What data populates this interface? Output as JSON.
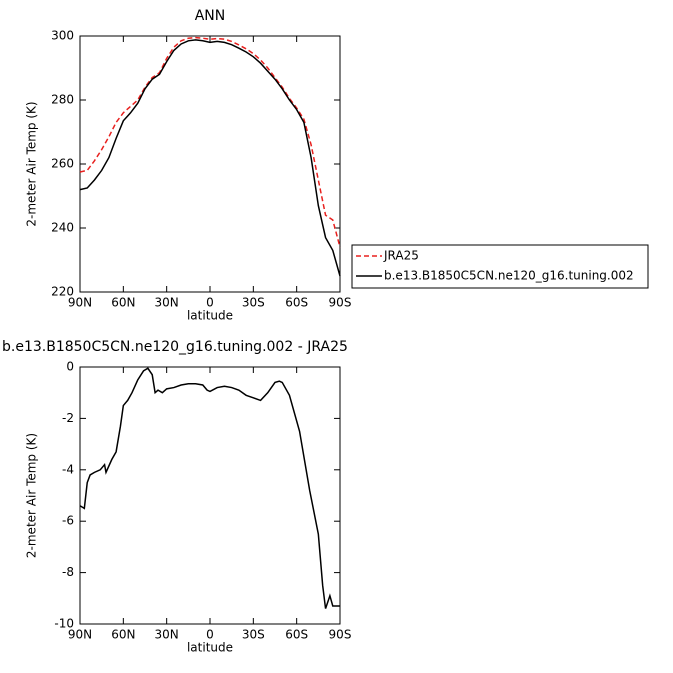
{
  "chart_data": [
    {
      "type": "line",
      "title": "ANN",
      "x_label": "latitude",
      "y_label": "2-meter Air Temp (K)",
      "x": [
        90,
        85,
        80,
        75,
        70,
        65,
        60,
        55,
        50,
        45,
        40,
        35,
        30,
        25,
        20,
        15,
        10,
        5,
        0,
        -5,
        -10,
        -15,
        -20,
        -25,
        -30,
        -35,
        -40,
        -45,
        -50,
        -55,
        -60,
        -65,
        -70,
        -75,
        -80,
        -85,
        -90
      ],
      "series": [
        {
          "name": "JRA25",
          "color": "#e8201e",
          "style": "dashed",
          "values": [
            257.5,
            258,
            261,
            264.5,
            268.5,
            273,
            276,
            278,
            280,
            284,
            287,
            288.5,
            293,
            296.5,
            298.5,
            299.3,
            299.5,
            299.3,
            299,
            299.2,
            299,
            298.3,
            297.2,
            296,
            294.5,
            292.5,
            290,
            287,
            284,
            280.5,
            277.5,
            274,
            266,
            255,
            244,
            242.5,
            234
          ]
        },
        {
          "name": "b.e13.B1850C5CN.ne120_g16.tuning.002",
          "color": "#000000",
          "style": "solid",
          "values": [
            252,
            252.5,
            255,
            258,
            262,
            268,
            273.5,
            276,
            279,
            283.5,
            286.5,
            288,
            292,
            295.5,
            297.5,
            298.5,
            298.8,
            298.5,
            298,
            298.3,
            298,
            297.3,
            296.2,
            295,
            293.5,
            291.5,
            289,
            286.5,
            283.5,
            280,
            277,
            273,
            262,
            247,
            237,
            233,
            225
          ]
        }
      ],
      "xlim": [
        90,
        -90
      ],
      "xticks": [
        {
          "value": 90,
          "label": "90N"
        },
        {
          "value": 60,
          "label": "60N"
        },
        {
          "value": 30,
          "label": "30N"
        },
        0,
        {
          "value": -30,
          "label": "30S"
        },
        {
          "value": -60,
          "label": "60S"
        },
        {
          "value": -90,
          "label": "90S"
        }
      ],
      "ylim": [
        220,
        300
      ],
      "yticks": [
        220,
        240,
        260,
        280,
        300
      ],
      "legend": "right"
    },
    {
      "type": "line",
      "title": "b.e13.B1850C5CN.ne120_g16.tuning.002 - JRA25",
      "x_label": "latitude",
      "y_label": "2-meter Air Temp (K)",
      "x": [
        90,
        87,
        85,
        83,
        80,
        76,
        73,
        72,
        68,
        65,
        62,
        60,
        57,
        54,
        50,
        46,
        43,
        40,
        38,
        36,
        33,
        30,
        25,
        20,
        15,
        10,
        5,
        2,
        0,
        -5,
        -10,
        -15,
        -20,
        -25,
        -30,
        -35,
        -40,
        -45,
        -48,
        -50,
        -55,
        -62,
        -69,
        -75,
        -78,
        -80,
        -83,
        -85,
        -90
      ],
      "series": [
        {
          "color": "#000000",
          "style": "solid",
          "values": [
            -5.4,
            -5.5,
            -4.5,
            -4.2,
            -4.1,
            -4.0,
            -3.8,
            -4.1,
            -3.6,
            -3.3,
            -2.3,
            -1.5,
            -1.3,
            -1.0,
            -0.5,
            -0.15,
            -0.05,
            -0.3,
            -1.0,
            -0.9,
            -1.0,
            -0.85,
            -0.8,
            -0.7,
            -0.65,
            -0.65,
            -0.7,
            -0.9,
            -0.95,
            -0.8,
            -0.75,
            -0.8,
            -0.9,
            -1.1,
            -1.2,
            -1.3,
            -1.0,
            -0.6,
            -0.55,
            -0.6,
            -1.1,
            -2.5,
            -4.8,
            -6.5,
            -8.5,
            -9.4,
            -8.9,
            -9.3,
            -9.3
          ]
        }
      ],
      "xlim": [
        90,
        -90
      ],
      "xticks": [
        {
          "value": 90,
          "label": "90N"
        },
        {
          "value": 60,
          "label": "60N"
        },
        {
          "value": 30,
          "label": "30N"
        },
        0,
        {
          "value": -30,
          "label": "30S"
        },
        {
          "value": -60,
          "label": "60S"
        },
        {
          "value": -90,
          "label": "90S"
        }
      ],
      "ylim": [
        -10,
        0
      ],
      "yticks": [
        -10,
        -8,
        -6,
        -4,
        -2,
        0
      ]
    }
  ]
}
